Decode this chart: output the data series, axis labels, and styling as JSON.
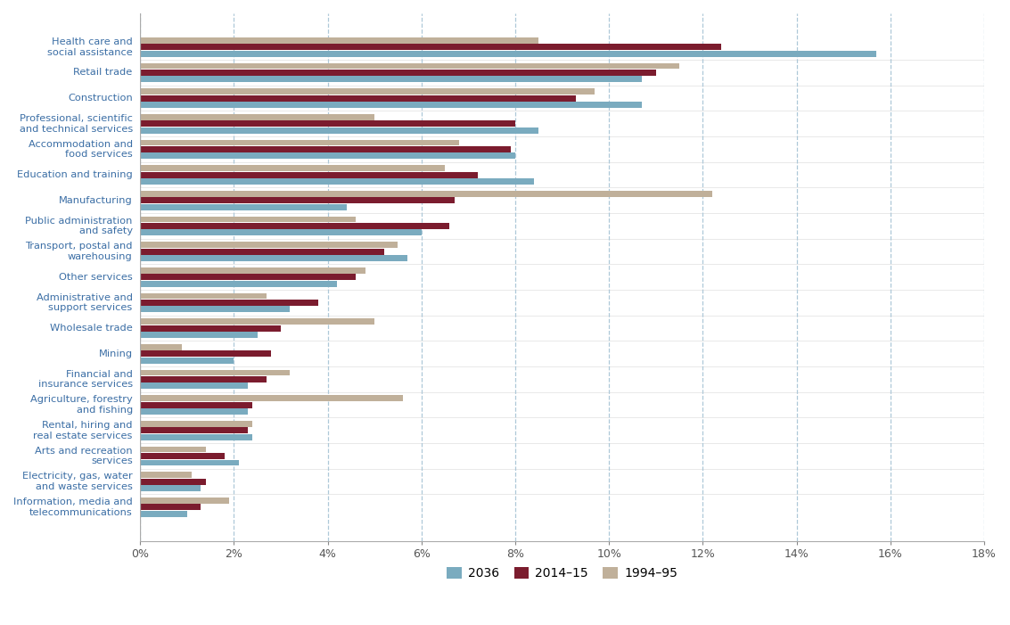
{
  "categories": [
    "Health care and\nsocial assistance",
    "Retail trade",
    "Construction",
    "Professional, scientific\nand technical services",
    "Accommodation and\nfood services",
    "Education and training",
    "Manufacturing",
    "Public administration\nand safety",
    "Transport, postal and\nwarehousing",
    "Other services",
    "Administrative and\nsupport services",
    "Wholesale trade",
    "Mining",
    "Financial and\ninsurance services",
    "Agriculture, forestry\nand fishing",
    "Rental, hiring and\nreal estate services",
    "Arts and recreation\nservices",
    "Electricity, gas, water\nand waste services",
    "Information, media and\ntelecommunications"
  ],
  "series": {
    "2036": [
      15.7,
      10.7,
      10.7,
      8.5,
      8.0,
      8.4,
      4.4,
      6.0,
      5.7,
      4.2,
      3.2,
      2.5,
      2.0,
      2.3,
      2.3,
      2.4,
      2.1,
      1.3,
      1.0
    ],
    "2014-15": [
      12.4,
      11.0,
      9.3,
      8.0,
      7.9,
      7.2,
      6.7,
      6.6,
      5.2,
      4.6,
      3.8,
      3.0,
      2.8,
      2.7,
      2.4,
      2.3,
      1.8,
      1.4,
      1.3
    ],
    "1994-95": [
      8.5,
      11.5,
      9.7,
      5.0,
      6.8,
      6.5,
      12.2,
      4.6,
      5.5,
      4.8,
      2.7,
      5.0,
      0.9,
      3.2,
      5.6,
      2.4,
      1.4,
      1.1,
      1.9
    ]
  },
  "colors": {
    "2036": "#7aabbf",
    "2014-15": "#7b1c2e",
    "1994-95": "#c0b09a"
  },
  "legend_labels": [
    "2036",
    "2014–15",
    "1994–95"
  ],
  "legend_colors": [
    "#7aabbf",
    "#7b1c2e",
    "#c0b09a"
  ],
  "xlim": [
    0,
    18
  ],
  "xtick_values": [
    0,
    2,
    4,
    6,
    8,
    10,
    12,
    14,
    16,
    18
  ],
  "xtick_labels": [
    "0%",
    "2%",
    "4%",
    "6%",
    "8%",
    "10%",
    "12%",
    "14%",
    "16%",
    "18%"
  ],
  "background_color": "#ffffff",
  "plot_area_color": "#ffffff",
  "grid_color": "#aec8d8",
  "label_color": "#3b6ea5",
  "bar_height": 0.26,
  "figsize": [
    11.33,
    7.01
  ],
  "dpi": 100
}
